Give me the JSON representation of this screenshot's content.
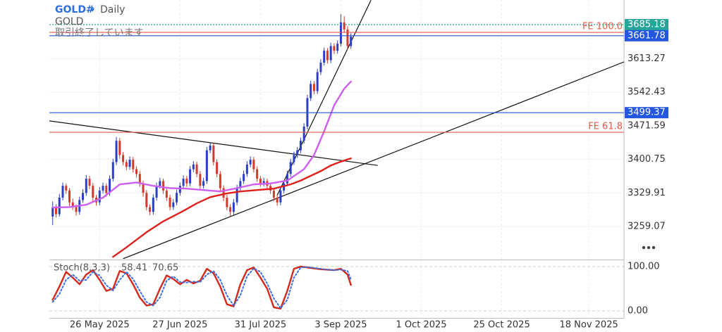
{
  "header": {
    "symbol": "GOLD#",
    "caret": "▾",
    "timeframe": "Daily",
    "name": "GOLD",
    "status": "取引終了しています"
  },
  "chart_data": [
    {
      "type": "candlestick",
      "grid": true,
      "up_color": "#2b3fc4",
      "down_color": "#d13a2c",
      "xlim": [
        -1,
        170.5
      ],
      "xticks": [
        {
          "value": 14,
          "label": "26 May 2025"
        },
        {
          "value": 38,
          "label": "27 Jun 2025"
        },
        {
          "value": 62,
          "label": "31 Jul 2025"
        },
        {
          "value": 86,
          "label": "3 Sep 2025"
        },
        {
          "value": 110,
          "label": "1 Oct 2025"
        },
        {
          "value": 134,
          "label": "25 Oct 2025"
        },
        {
          "value": 160,
          "label": "18 Nov 2025"
        }
      ],
      "ylim": [
        3190.8,
        3737.2
      ],
      "yticks": [
        3259.07,
        3329.91,
        3400.75,
        3471.59,
        3542.43,
        3613.27
      ],
      "ohlc": [
        [
          3280,
          3312,
          3262,
          3300
        ],
        [
          3300,
          3306,
          3278,
          3285
        ],
        [
          3285,
          3328,
          3280,
          3320
        ],
        [
          3320,
          3352,
          3314,
          3345
        ],
        [
          3345,
          3350,
          3328,
          3335
        ],
        [
          3335,
          3340,
          3302,
          3310
        ],
        [
          3310,
          3318,
          3294,
          3300
        ],
        [
          3300,
          3305,
          3282,
          3290
        ],
        [
          3290,
          3322,
          3284,
          3315
        ],
        [
          3315,
          3338,
          3309,
          3330
        ],
        [
          3330,
          3368,
          3324,
          3360
        ],
        [
          3360,
          3366,
          3338,
          3345
        ],
        [
          3345,
          3351,
          3312,
          3320
        ],
        [
          3320,
          3326,
          3303,
          3310
        ],
        [
          3310,
          3342,
          3304,
          3335
        ],
        [
          3335,
          3352,
          3329,
          3345
        ],
        [
          3345,
          3350,
          3322,
          3330
        ],
        [
          3330,
          3367,
          3324,
          3360
        ],
        [
          3360,
          3402,
          3354,
          3395
        ],
        [
          3395,
          3448,
          3389,
          3440
        ],
        [
          3440,
          3446,
          3402,
          3410
        ],
        [
          3410,
          3416,
          3388,
          3395
        ],
        [
          3395,
          3400,
          3378,
          3385
        ],
        [
          3385,
          3407,
          3379,
          3400
        ],
        [
          3400,
          3406,
          3373,
          3380
        ],
        [
          3380,
          3386,
          3362,
          3370
        ],
        [
          3370,
          3376,
          3343,
          3350
        ],
        [
          3350,
          3356,
          3322,
          3330
        ],
        [
          3330,
          3336,
          3293,
          3300
        ],
        [
          3300,
          3306,
          3283,
          3290
        ],
        [
          3290,
          3327,
          3284,
          3320
        ],
        [
          3320,
          3352,
          3314,
          3345
        ],
        [
          3345,
          3362,
          3339,
          3355
        ],
        [
          3355,
          3360,
          3328,
          3335
        ],
        [
          3335,
          3340,
          3313,
          3320
        ],
        [
          3320,
          3326,
          3293,
          3300
        ],
        [
          3300,
          3317,
          3294,
          3310
        ],
        [
          3310,
          3337,
          3304,
          3330
        ],
        [
          3330,
          3352,
          3324,
          3345
        ],
        [
          3345,
          3367,
          3339,
          3360
        ],
        [
          3360,
          3366,
          3343,
          3350
        ],
        [
          3350,
          3387,
          3344,
          3380
        ],
        [
          3380,
          3397,
          3374,
          3390
        ],
        [
          3390,
          3396,
          3363,
          3370
        ],
        [
          3370,
          3376,
          3338,
          3345
        ],
        [
          3345,
          3362,
          3339,
          3355
        ],
        [
          3355,
          3427,
          3349,
          3420
        ],
        [
          3420,
          3437,
          3414,
          3430
        ],
        [
          3430,
          3436,
          3388,
          3395
        ],
        [
          3395,
          3401,
          3363,
          3370
        ],
        [
          3370,
          3376,
          3333,
          3340
        ],
        [
          3340,
          3346,
          3313,
          3320
        ],
        [
          3320,
          3326,
          3293,
          3300
        ],
        [
          3300,
          3306,
          3280,
          3290
        ],
        [
          3290,
          3317,
          3284,
          3310
        ],
        [
          3310,
          3347,
          3304,
          3340
        ],
        [
          3340,
          3362,
          3334,
          3355
        ],
        [
          3355,
          3377,
          3349,
          3370
        ],
        [
          3370,
          3397,
          3364,
          3390
        ],
        [
          3390,
          3407,
          3384,
          3400
        ],
        [
          3400,
          3406,
          3373,
          3380
        ],
        [
          3380,
          3386,
          3353,
          3360
        ],
        [
          3360,
          3366,
          3343,
          3350
        ],
        [
          3350,
          3362,
          3344,
          3355
        ],
        [
          3355,
          3360,
          3338,
          3345
        ],
        [
          3345,
          3350,
          3328,
          3335
        ],
        [
          3335,
          3340,
          3313,
          3320
        ],
        [
          3320,
          3326,
          3303,
          3310
        ],
        [
          3310,
          3342,
          3304,
          3335
        ],
        [
          3335,
          3357,
          3329,
          3350
        ],
        [
          3350,
          3377,
          3344,
          3370
        ],
        [
          3370,
          3402,
          3364,
          3395
        ],
        [
          3395,
          3417,
          3389,
          3410
        ],
        [
          3410,
          3427,
          3404,
          3420
        ],
        [
          3420,
          3447,
          3414,
          3440
        ],
        [
          3440,
          3477,
          3434,
          3470
        ],
        [
          3470,
          3537,
          3464,
          3530
        ],
        [
          3530,
          3567,
          3524,
          3560
        ],
        [
          3560,
          3566,
          3538,
          3545
        ],
        [
          3545,
          3592,
          3539,
          3585
        ],
        [
          3585,
          3612,
          3579,
          3605
        ],
        [
          3605,
          3637,
          3599,
          3630
        ],
        [
          3630,
          3636,
          3603,
          3610
        ],
        [
          3610,
          3647,
          3604,
          3640
        ],
        [
          3640,
          3646,
          3623,
          3630
        ],
        [
          3630,
          3652,
          3624,
          3645
        ],
        [
          3645,
          3707,
          3639,
          3690
        ],
        [
          3690,
          3703,
          3668,
          3675
        ],
        [
          3675,
          3682,
          3633,
          3640
        ],
        [
          3640,
          3667,
          3634,
          3660
        ]
      ],
      "series": [
        {
          "color": "#cc5ff0",
          "x": [
            0,
            5,
            10,
            15,
            20,
            25,
            30,
            35,
            40,
            45,
            50,
            55,
            60,
            65,
            70,
            75,
            78,
            81,
            84,
            87,
            89
          ],
          "values": [
            3299,
            3300,
            3305,
            3320,
            3348,
            3352,
            3345,
            3340,
            3339,
            3336,
            3333,
            3340,
            3348,
            3350,
            3356,
            3380,
            3410,
            3460,
            3515,
            3550,
            3565
          ]
        },
        {
          "color": "#e0201c",
          "x": [
            18,
            22,
            28,
            33,
            39,
            43,
            47,
            52,
            56,
            61,
            66,
            71,
            74,
            77,
            80,
            83,
            86,
            89
          ],
          "values": [
            3195,
            3215,
            3247,
            3270,
            3292,
            3308,
            3321,
            3329,
            3333,
            3336,
            3339,
            3348,
            3356,
            3366,
            3376,
            3388,
            3396,
            3403
          ]
        }
      ],
      "price_lines": [
        {
          "value": 3685.18,
          "color": "#26a69a",
          "style": "dotted",
          "box": true
        },
        {
          "value": 3668.8,
          "color": "#e05a48",
          "label": "FE 100.0"
        },
        {
          "value": 3661.78,
          "color": "#2457e0",
          "box": true
        },
        {
          "value": 3499.37,
          "color": "#2457e0",
          "box": true
        },
        {
          "value": 3458,
          "color": "#e05a48",
          "label": "FE 61.8"
        }
      ],
      "trendlines": [
        {
          "points": [
            [
              -1,
              3482
            ],
            [
              97,
              3388
            ]
          ]
        },
        {
          "points": [
            [
              67,
              3325
            ],
            [
              95,
              3737
            ]
          ]
        },
        {
          "points": [
            [
              21,
              3191
            ],
            [
              170.5,
              3606.5
            ]
          ]
        }
      ]
    },
    {
      "type": "line",
      "title": "Stoch(8,3,3)",
      "ylim": [
        -12.7,
        111.1
      ],
      "yticks": [
        {
          "value": 100,
          "label": "100.00"
        },
        {
          "value": 0,
          "label": "0.00"
        }
      ],
      "series": [
        {
          "color": "#d42a1c",
          "style": "solid",
          "x": [
            0,
            2,
            4,
            6,
            8,
            10,
            12,
            14,
            16,
            18,
            20,
            22,
            24,
            26,
            28,
            30,
            32,
            34,
            36,
            38,
            40,
            42,
            44,
            46,
            48,
            50,
            52,
            54,
            56,
            58,
            60,
            62,
            64,
            66,
            68,
            70,
            72,
            74,
            76,
            78,
            80,
            82,
            84,
            86,
            88,
            89
          ],
          "values": [
            25,
            55,
            88,
            75,
            60,
            82,
            92,
            70,
            45,
            50,
            90,
            85,
            60,
            30,
            12,
            15,
            50,
            80,
            72,
            60,
            70,
            62,
            68,
            95,
            85,
            55,
            15,
            10,
            60,
            92,
            98,
            75,
            50,
            8,
            5,
            45,
            95,
            100,
            98,
            96,
            94,
            93,
            92,
            95,
            82,
            58.41
          ]
        },
        {
          "color": "#3a6fe0",
          "style": "dotted",
          "x": [
            0,
            2,
            4,
            6,
            8,
            10,
            12,
            14,
            16,
            18,
            20,
            22,
            24,
            26,
            28,
            30,
            32,
            34,
            36,
            38,
            40,
            42,
            44,
            46,
            48,
            50,
            52,
            54,
            56,
            58,
            60,
            62,
            64,
            66,
            68,
            70,
            72,
            74,
            76,
            78,
            80,
            82,
            84,
            86,
            88,
            89
          ],
          "values": [
            20,
            38,
            70,
            82,
            68,
            70,
            88,
            80,
            58,
            46,
            70,
            88,
            72,
            45,
            20,
            12,
            30,
            68,
            78,
            65,
            64,
            66,
            65,
            82,
            90,
            70,
            35,
            12,
            35,
            78,
            96,
            88,
            62,
            28,
            6,
            25,
            75,
            98,
            99,
            97,
            95,
            93,
            92,
            93,
            90,
            70.65
          ]
        }
      ]
    }
  ]
}
